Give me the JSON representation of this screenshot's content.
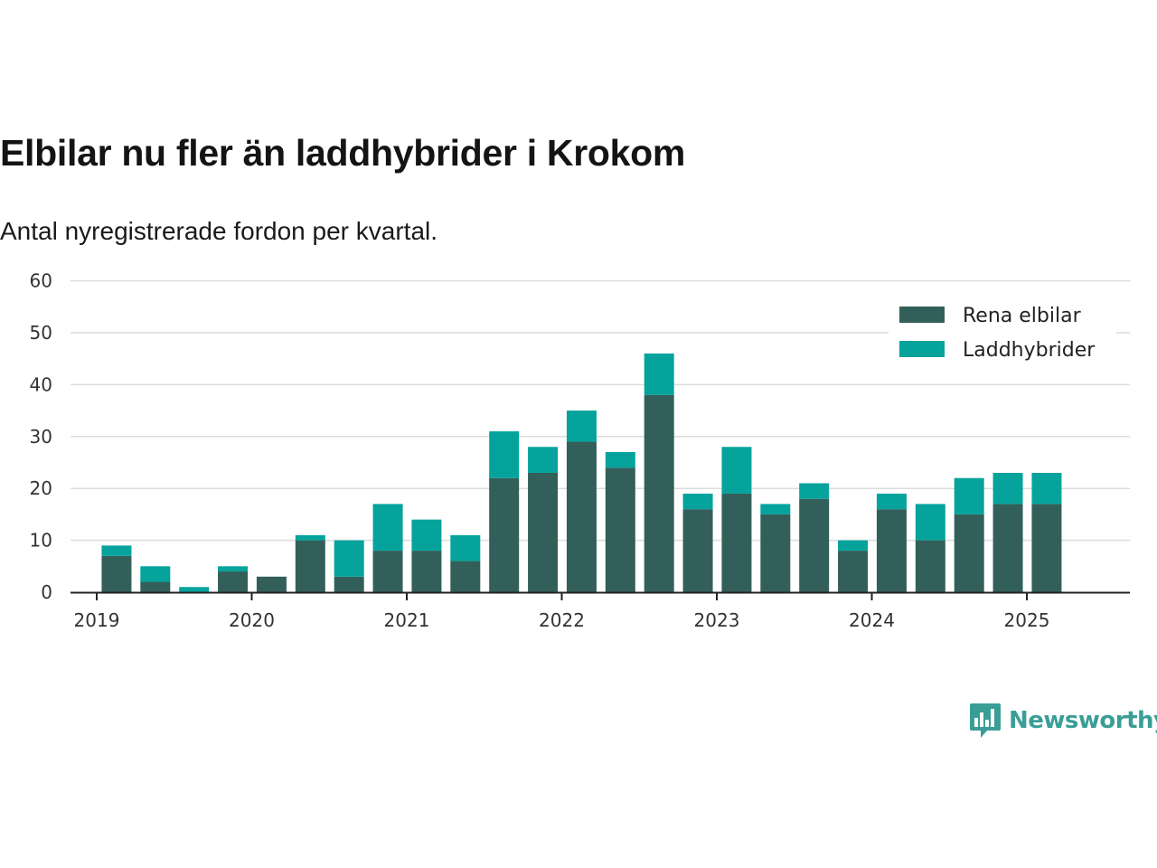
{
  "title": "Elbilar nu fler än laddhybrider i Krokom",
  "subtitle": "Antal nyregistrerade fordon per kvartal.",
  "brand": "Newsworthy",
  "colors": {
    "rena_elbilar": "#335f5a",
    "laddhybrider": "#05a39b",
    "grid": "#dcdcdc",
    "axis": "#222222",
    "brand": "#3a9e97"
  },
  "chart_data": {
    "type": "bar",
    "stacked": true,
    "categories": [
      "2019 Q1",
      "2019 Q2",
      "2019 Q3",
      "2019 Q4",
      "2020 Q1",
      "2020 Q2",
      "2020 Q3",
      "2020 Q4",
      "2021 Q1",
      "2021 Q2",
      "2021 Q3",
      "2021 Q4",
      "2022 Q1",
      "2022 Q2",
      "2022 Q3",
      "2022 Q4",
      "2023 Q1",
      "2023 Q2",
      "2023 Q3",
      "2023 Q4",
      "2024 Q1",
      "2024 Q2",
      "2024 Q3",
      "2024 Q4",
      "2025 Q1",
      "2025 Q2"
    ],
    "series": [
      {
        "name": "Rena elbilar",
        "values": [
          7,
          2,
          0,
          4,
          3,
          10,
          3,
          8,
          8,
          6,
          22,
          23,
          29,
          24,
          38,
          16,
          19,
          15,
          18,
          8,
          16,
          10,
          15,
          17,
          17,
          0
        ]
      },
      {
        "name": "Laddhybrider",
        "values": [
          2,
          3,
          1,
          1,
          0,
          1,
          7,
          9,
          6,
          5,
          9,
          5,
          6,
          3,
          8,
          3,
          9,
          2,
          3,
          2,
          3,
          7,
          7,
          6,
          6,
          0
        ]
      }
    ],
    "x_tick_labels": [
      "2019",
      "2020",
      "2021",
      "2022",
      "2023",
      "2024",
      "2025"
    ],
    "y_ticks": [
      0,
      10,
      20,
      30,
      40,
      50,
      60
    ],
    "ylim": [
      0,
      60
    ],
    "grid": true,
    "legend_position": "top-right"
  }
}
